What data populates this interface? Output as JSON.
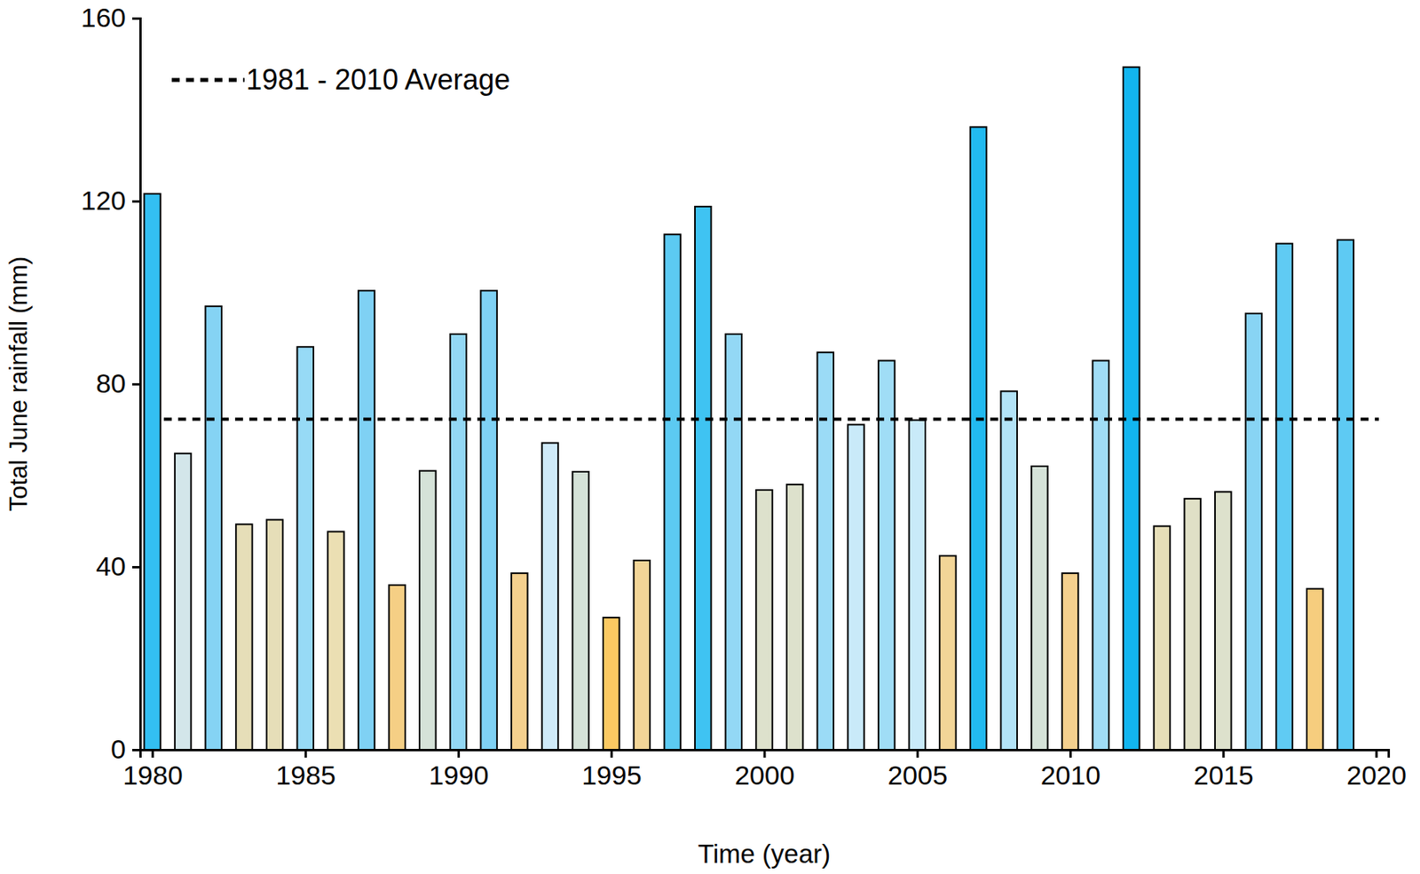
{
  "chart_data": {
    "type": "bar",
    "x_label": "Time (year)",
    "y_label": "Total June rainfall (mm)",
    "x": [
      1980,
      1981,
      1982,
      1983,
      1984,
      1985,
      1986,
      1987,
      1988,
      1989,
      1990,
      1991,
      1992,
      1993,
      1994,
      1995,
      1996,
      1997,
      1998,
      1999,
      2000,
      2001,
      2002,
      2003,
      2004,
      2005,
      2006,
      2007,
      2008,
      2009,
      2010,
      2011,
      2012,
      2013,
      2014,
      2015,
      2016,
      2017,
      2018,
      2019
    ],
    "values": [
      121.6,
      64.8,
      97,
      49.3,
      50.3,
      88.1,
      47.7,
      100.4,
      36,
      61,
      90.9,
      100.4,
      38.6,
      67.1,
      60.8,
      28.9,
      41.4,
      112.7,
      118.8,
      90.9,
      56.8,
      58,
      86.9,
      71.1,
      85.1,
      72.1,
      42.4,
      136.2,
      78.4,
      62,
      38.6,
      85.1,
      149.3,
      48.9,
      54.9,
      56.4,
      95.4,
      110.7,
      35.2,
      111.5
    ],
    "colors": [
      "#33bff2",
      "#d3e6ea",
      "#85d3f4",
      "#e6deb8",
      "#e6deb8",
      "#97daf6",
      "#ebdfb3",
      "#7fd1f4",
      "#f5cf85",
      "#d5e2d8",
      "#93d8f5",
      "#7fd1f4",
      "#f4d08e",
      "#cfeaf8",
      "#d5e2d8",
      "#fbc962",
      "#f2d597",
      "#5ccaf2",
      "#3fc3f2",
      "#93d8f5",
      "#dde1cc",
      "#dde1cc",
      "#9bdbf6",
      "#c9eaf9",
      "#a0ddf6",
      "#c9eaf9",
      "#f2d597",
      "#22baf0",
      "#b3e3f7",
      "#d5e2d8",
      "#f4d08e",
      "#a0ddf6",
      "#12b5ef",
      "#e6deb8",
      "#e0e0c6",
      "#dde1cc",
      "#88d4f4",
      "#60cbf3",
      "#f6cd7e",
      "#5ecaf3"
    ],
    "xlim": [
      1979.6,
      2020.4
    ],
    "xticks": [
      1980,
      1985,
      1990,
      1995,
      2000,
      2005,
      2010,
      2015,
      2020
    ],
    "ylim": [
      0,
      160
    ],
    "yticks": [
      0,
      40,
      80,
      120,
      160
    ],
    "average": {
      "name": "1981 - 2010 Average",
      "value": 72.3,
      "line_style": "dashed",
      "color": "#000000"
    },
    "legend": "top-left",
    "grid": false
  }
}
